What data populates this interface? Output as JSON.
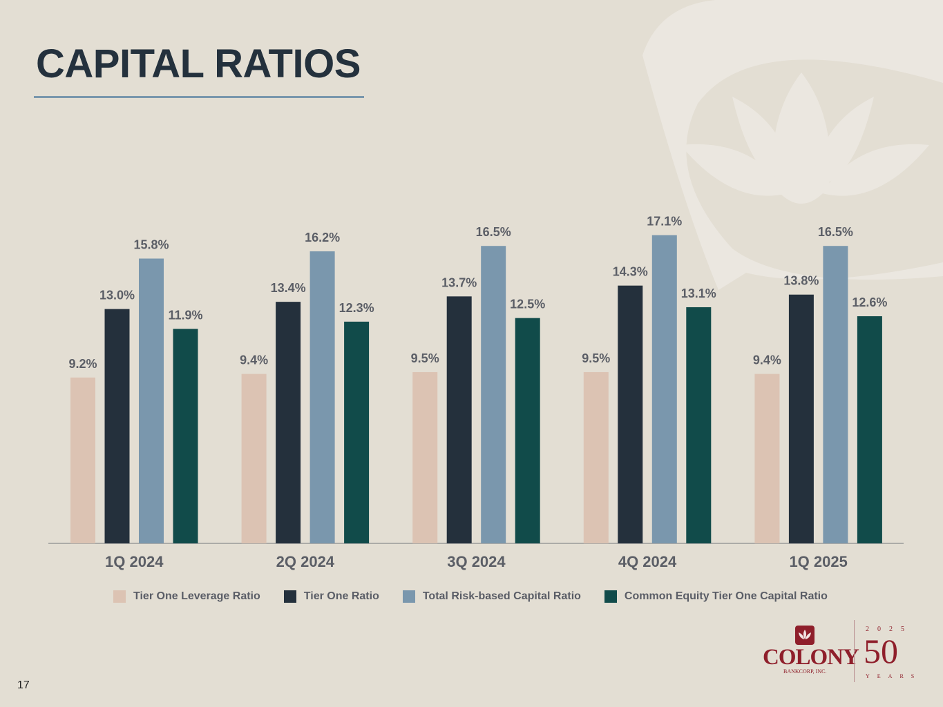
{
  "slide": {
    "title": "CAPITAL RATIOS",
    "page_number": "17"
  },
  "chart_data": {
    "type": "bar",
    "title": "CAPITAL RATIOS",
    "categories": [
      "1Q 2024",
      "2Q 2024",
      "3Q 2024",
      "4Q 2024",
      "1Q 2025"
    ],
    "series": [
      {
        "name": "Tier One Leverage Ratio",
        "color": "#dcc3b3",
        "values": [
          9.2,
          9.4,
          9.5,
          9.5,
          9.4
        ]
      },
      {
        "name": "Tier One Ratio",
        "color": "#24303c",
        "values": [
          13.0,
          13.4,
          13.7,
          14.3,
          13.8
        ]
      },
      {
        "name": "Total Risk-based Capital Ratio",
        "color": "#7a97ad",
        "values": [
          15.8,
          16.2,
          16.5,
          17.1,
          16.5
        ]
      },
      {
        "name": "Common Equity Tier One Capital Ratio",
        "color": "#114b4a",
        "values": [
          11.9,
          12.3,
          12.5,
          13.1,
          12.6
        ]
      }
    ],
    "value_suffix": "%",
    "ylim": [
      0,
      18.5
    ],
    "grid": false,
    "legend": "bottom",
    "xlabel": "",
    "ylabel": ""
  },
  "legend": {
    "items": [
      {
        "label": "Tier One Leverage Ratio",
        "color": "#dcc3b3"
      },
      {
        "label": "Tier One Ratio",
        "color": "#24303c"
      },
      {
        "label": "Total Risk-based Capital Ratio",
        "color": "#7a97ad"
      },
      {
        "label": "Common Equity Tier One Capital Ratio",
        "color": "#114b4a"
      }
    ]
  },
  "logo": {
    "name": "COLONY",
    "sub": "BANKCORP, INC.",
    "year": "2025",
    "anniversary": "50",
    "years_label": "YEARS"
  },
  "colors": {
    "background": "#e3ded3",
    "title": "#24313d",
    "accent": "#7a97ad",
    "brand": "#8f1f2b"
  }
}
